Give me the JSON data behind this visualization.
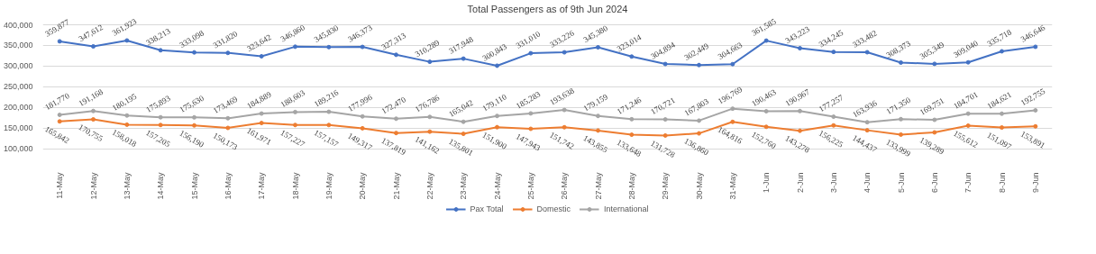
{
  "chart_data": {
    "type": "line",
    "title": "Total Passengers as of 9th Jun 2024",
    "categories": [
      "11-May",
      "12-May",
      "13-May",
      "14-May",
      "15-May",
      "16-May",
      "17-May",
      "18-May",
      "19-May",
      "20-May",
      "21-May",
      "22-May",
      "23-May",
      "24-May",
      "25-May",
      "26-May",
      "27-May",
      "28-May",
      "29-May",
      "30-May",
      "31-May",
      "1-Jun",
      "2-Jun",
      "3-Jun",
      "4-Jun",
      "5-Jun",
      "6-Jun",
      "7-Jun",
      "8-Jun",
      "9-Jun"
    ],
    "series": [
      {
        "name": "Pax Total",
        "color": "#4472c4",
        "values": [
          359877,
          347612,
          361923,
          338213,
          333098,
          331820,
          323642,
          346860,
          345830,
          346373,
          327313,
          310289,
          317948,
          300843,
          331010,
          333226,
          345380,
          323014,
          304894,
          302449,
          304663,
          361585,
          343223,
          334245,
          333482,
          308373,
          305349,
          309040,
          335718,
          346646
        ],
        "value_labels": [
          "359,877",
          "347,612",
          "361,923",
          "338,213",
          "333,098",
          "331,820",
          "323,642",
          "346,860",
          "345,830",
          "346,373",
          "327,313",
          "310,289",
          "317,948",
          "300,843",
          "331,010",
          "333,226",
          "345,380",
          "323,014",
          "304,894",
          "302,449",
          "304,663",
          "361,585",
          "343,223",
          "334,245",
          "333,482",
          "308,373",
          "305,349",
          "309,040",
          "335,718",
          "346,646"
        ]
      },
      {
        "name": "Domestic",
        "color": "#ed7d31",
        "values": [
          165842,
          170755,
          158018,
          157205,
          156190,
          150173,
          161971,
          157227,
          157157,
          149317,
          137819,
          141162,
          135801,
          151900,
          147943,
          151742,
          143855,
          133648,
          131728,
          136860,
          164816,
          152760,
          143278,
          156225,
          144437,
          133999,
          139289,
          155612,
          151097,
          153891
        ],
        "value_labels": [
          "165,842",
          "170,755",
          "158,018",
          "157,205",
          "156,190",
          "150,173",
          "161,971",
          "157,227",
          "157,157",
          "149,317",
          "137,819",
          "141,162",
          "135,801",
          "151,900",
          "147,943",
          "151,742",
          "143,855",
          "133,648",
          "131,728",
          "136,860",
          "164,816",
          "152,760",
          "143,278",
          "156,225",
          "144,437",
          "133,999",
          "139,289",
          "155,612",
          "151,097",
          "153,891"
        ]
      },
      {
        "name": "International",
        "color": "#a5a5a5",
        "values": [
          181770,
          191168,
          180195,
          175893,
          175630,
          173469,
          184889,
          188603,
          189216,
          177996,
          172470,
          176786,
          165042,
          179110,
          185283,
          193638,
          179159,
          171246,
          170721,
          167803,
          196769,
          190463,
          190967,
          177257,
          163936,
          171350,
          169751,
          184701,
          184621,
          192755
        ],
        "value_labels": [
          "181,770",
          "191,168",
          "180,195",
          "175,893",
          "175,630",
          "173,469",
          "184,889",
          "188,603",
          "189,216",
          "177,996",
          "172,470",
          "176,786",
          "165,042",
          "179,110",
          "185,283",
          "193,638",
          "179,159",
          "171,246",
          "170,721",
          "167,803",
          "196,769",
          "190,463",
          "190,967",
          "177,257",
          "163,936",
          "171,350",
          "169,751",
          "184,701",
          "184,621",
          "192,755"
        ]
      }
    ],
    "ylim": [
      100000,
      400000
    ],
    "yticks": [
      {
        "value": 100000,
        "label": "100,000"
      },
      {
        "value": 150000,
        "label": "150,000"
      },
      {
        "value": 200000,
        "label": "200,000"
      },
      {
        "value": 250000,
        "label": "250,000"
      },
      {
        "value": 300000,
        "label": "300,000"
      },
      {
        "value": 350000,
        "label": "350,000"
      },
      {
        "value": 400000,
        "label": "400,000"
      }
    ],
    "grid": "y",
    "legend": "bottom",
    "marker": "circle",
    "line_style": "solid"
  }
}
